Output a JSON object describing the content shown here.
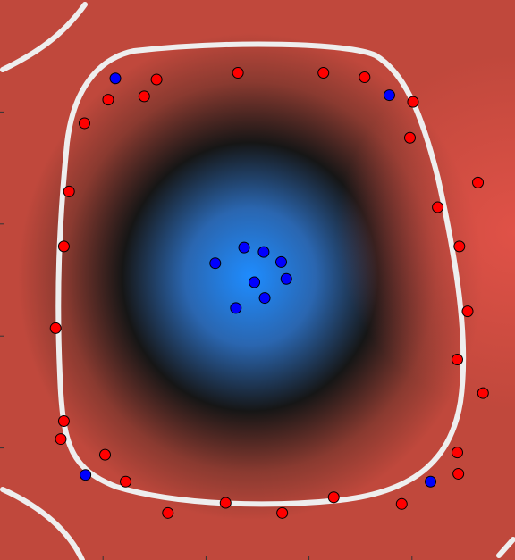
{
  "chart_data": {
    "type": "scatter",
    "xlim": [
      0,
      5
    ],
    "ylim": [
      0,
      5
    ],
    "xticks": [
      1,
      2,
      3,
      4
    ],
    "yticks": [
      1,
      2,
      3,
      4
    ],
    "series": [
      {
        "color": "#ff0000",
        "x": [
          1.52,
          1.05,
          1.4,
          2.31,
          3.14,
          3.54,
          4.01,
          0.82,
          3.98,
          4.64,
          0.67,
          4.25,
          0.62,
          4.46,
          4.54,
          0.54,
          4.44,
          4.69,
          0.62,
          0.59,
          4.44,
          1.02,
          4.45,
          1.22,
          3.24,
          3.9,
          2.19,
          1.63,
          2.74
        ],
        "values": [
          4.29,
          4.11,
          4.14,
          4.35,
          4.35,
          4.31,
          4.09,
          3.9,
          3.77,
          3.37,
          3.29,
          3.15,
          2.8,
          2.8,
          2.22,
          2.07,
          1.79,
          1.49,
          1.24,
          1.08,
          0.96,
          0.94,
          0.77,
          0.7,
          0.56,
          0.5,
          0.51,
          0.42,
          0.42
        ]
      },
      {
        "color": "#0000ff",
        "x": [
          1.12,
          3.78,
          2.09,
          2.37,
          2.56,
          2.73,
          2.78,
          2.47,
          2.57,
          2.29,
          0.83,
          4.18
        ],
        "values": [
          4.3,
          4.15,
          2.65,
          2.79,
          2.75,
          2.66,
          2.51,
          2.48,
          2.34,
          2.25,
          0.76,
          0.7
        ]
      }
    ]
  }
}
